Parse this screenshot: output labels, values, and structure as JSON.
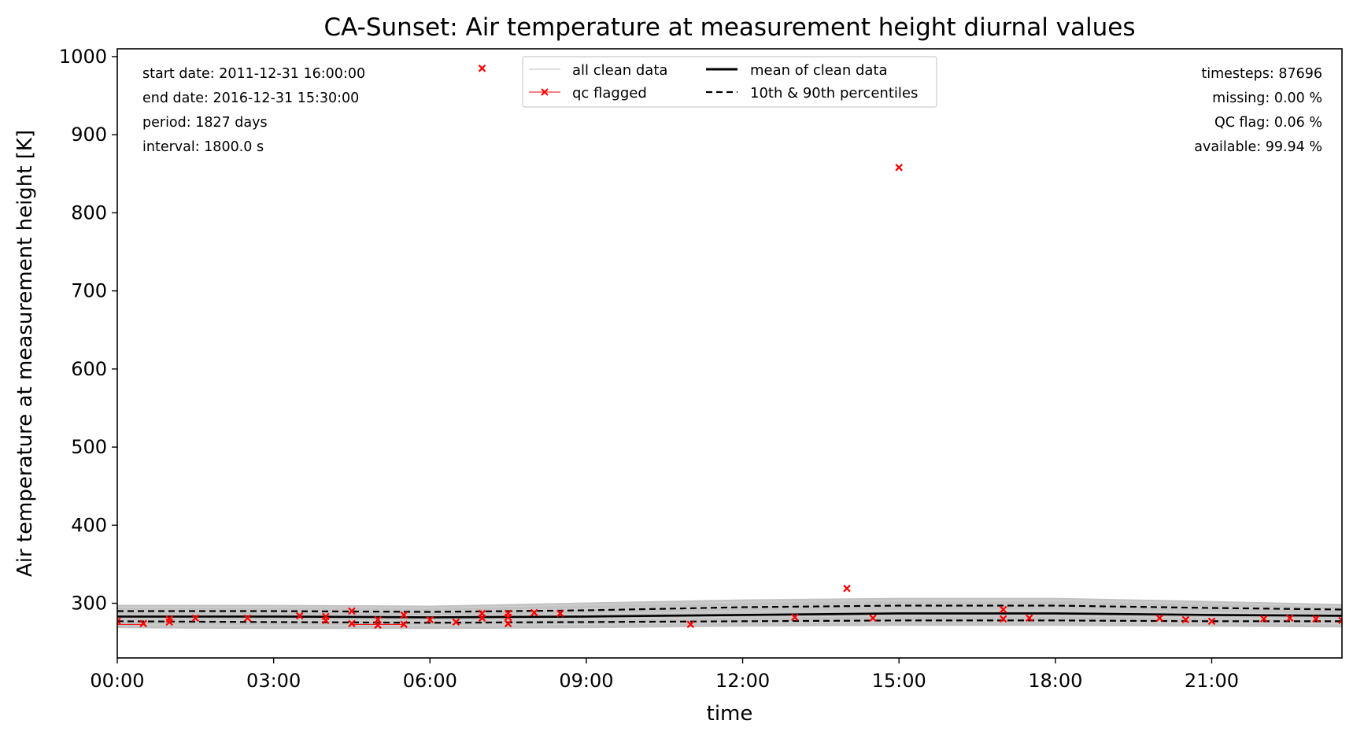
{
  "chart_data": {
    "type": "line",
    "title": "CA-Sunset: Air temperature at measurement height diurnal values",
    "xlabel": "time",
    "ylabel": "Air temperature at measurement height [K]",
    "xlim": [
      0,
      23.5
    ],
    "ylim": [
      230,
      1010
    ],
    "x_ticks": [
      {
        "value": 0,
        "label": "00:00"
      },
      {
        "value": 3,
        "label": "03:00"
      },
      {
        "value": 6,
        "label": "06:00"
      },
      {
        "value": 9,
        "label": "09:00"
      },
      {
        "value": 12,
        "label": "12:00"
      },
      {
        "value": 15,
        "label": "15:00"
      },
      {
        "value": 18,
        "label": "18:00"
      },
      {
        "value": 21,
        "label": "21:00"
      }
    ],
    "y_ticks": [
      {
        "value": 300,
        "label": "300"
      },
      {
        "value": 400,
        "label": "400"
      },
      {
        "value": 500,
        "label": "500"
      },
      {
        "value": 600,
        "label": "600"
      },
      {
        "value": 700,
        "label": "700"
      },
      {
        "value": 800,
        "label": "800"
      },
      {
        "value": 900,
        "label": "900"
      },
      {
        "value": 1000,
        "label": "1000"
      }
    ],
    "stats_left": [
      "start date: 2011-12-31 16:00:00",
      "end date: 2016-12-31 15:30:00",
      "period: 1827 days",
      "interval: 1800.0 s"
    ],
    "stats_right": [
      "timesteps: 87696",
      "missing: 0.00 %",
      "QC flag: 0.06 %",
      "available: 99.94 %"
    ],
    "legend": [
      {
        "label": "all clean data",
        "style": "thin-gray"
      },
      {
        "label": "qc flagged",
        "style": "red-x"
      },
      {
        "label": "mean of clean data",
        "style": "solid-black"
      },
      {
        "label": "10th & 90th percentiles",
        "style": "dashed-black"
      }
    ],
    "colors": {
      "clean": "#bdbdbd",
      "qc": "#ff0000",
      "mean": "#000000",
      "percentile": "#000000"
    },
    "clean_envelope": {
      "x": [
        0,
        3,
        6,
        9,
        12,
        15,
        18,
        21,
        23.5
      ],
      "upper": [
        298,
        298,
        297,
        301,
        305,
        307,
        307,
        303,
        299
      ],
      "lower": [
        268,
        267,
        267,
        268,
        270,
        271,
        271,
        270,
        269
      ]
    },
    "series": [
      {
        "name": "mean of clean data",
        "x": [
          0,
          3,
          6,
          9,
          12,
          15,
          18,
          21,
          23.5
        ],
        "values": [
          283,
          283,
          282,
          283,
          285,
          287,
          287,
          285,
          284
        ]
      },
      {
        "name": "90th percentile",
        "x": [
          0,
          3,
          6,
          9,
          12,
          15,
          18,
          21,
          23.5
        ],
        "values": [
          290,
          290,
          289,
          291,
          295,
          297,
          297,
          294,
          292
        ]
      },
      {
        "name": "10th percentile",
        "x": [
          0,
          3,
          6,
          9,
          12,
          15,
          18,
          21,
          23.5
        ],
        "values": [
          277,
          276,
          275,
          276,
          277,
          278,
          278,
          277,
          277
        ]
      }
    ],
    "qc_points": [
      {
        "x": 0.0,
        "y": 277
      },
      {
        "x": 0.5,
        "y": 274
      },
      {
        "x": 1.0,
        "y": 276
      },
      {
        "x": 1.0,
        "y": 280
      },
      {
        "x": 1.5,
        "y": 281
      },
      {
        "x": 2.5,
        "y": 281
      },
      {
        "x": 3.5,
        "y": 284
      },
      {
        "x": 4.0,
        "y": 278
      },
      {
        "x": 4.0,
        "y": 283
      },
      {
        "x": 4.5,
        "y": 274
      },
      {
        "x": 4.5,
        "y": 290
      },
      {
        "x": 5.0,
        "y": 272
      },
      {
        "x": 5.0,
        "y": 279
      },
      {
        "x": 5.5,
        "y": 273
      },
      {
        "x": 5.5,
        "y": 285
      },
      {
        "x": 6.0,
        "y": 279
      },
      {
        "x": 6.5,
        "y": 276
      },
      {
        "x": 7.0,
        "y": 985
      },
      {
        "x": 7.0,
        "y": 281
      },
      {
        "x": 7.0,
        "y": 287
      },
      {
        "x": 7.5,
        "y": 274
      },
      {
        "x": 7.5,
        "y": 282
      },
      {
        "x": 7.5,
        "y": 287
      },
      {
        "x": 8.0,
        "y": 288
      },
      {
        "x": 8.5,
        "y": 287
      },
      {
        "x": 11.0,
        "y": 273
      },
      {
        "x": 13.0,
        "y": 282
      },
      {
        "x": 14.0,
        "y": 319
      },
      {
        "x": 14.5,
        "y": 281
      },
      {
        "x": 15.0,
        "y": 858
      },
      {
        "x": 17.0,
        "y": 280
      },
      {
        "x": 17.0,
        "y": 292
      },
      {
        "x": 17.5,
        "y": 281
      },
      {
        "x": 20.0,
        "y": 281
      },
      {
        "x": 20.5,
        "y": 279
      },
      {
        "x": 21.0,
        "y": 277
      },
      {
        "x": 22.0,
        "y": 280
      },
      {
        "x": 22.5,
        "y": 281
      },
      {
        "x": 23.0,
        "y": 280
      },
      {
        "x": 23.5,
        "y": 278
      }
    ]
  }
}
